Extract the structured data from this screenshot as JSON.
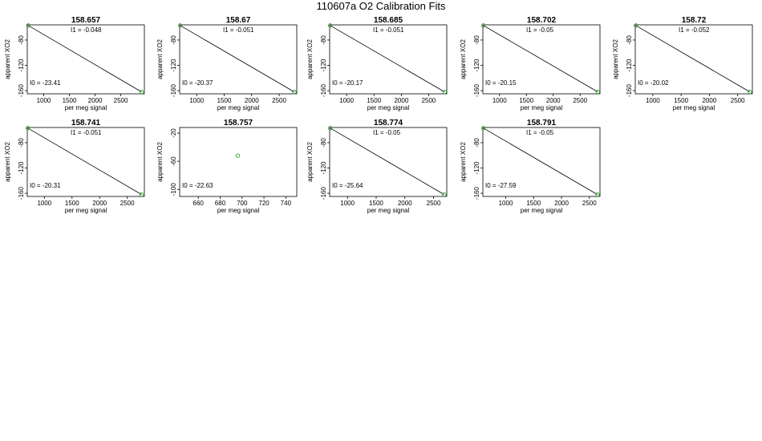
{
  "figure": {
    "title": "110607a   O2 Calibration Fits",
    "point_color": "#2ca02c",
    "line_color": "#000000"
  },
  "chart_data": [
    {
      "type": "scatter",
      "title": "158.657",
      "xlabel": "per meg signal",
      "ylabel": "apparent XO2",
      "xlim": [
        680,
        2960
      ],
      "ylim": [
        -165,
        -56
      ],
      "xticks": [
        1000,
        1500,
        2000,
        2500
      ],
      "yticks": [
        -160,
        -120,
        -80
      ],
      "points": [
        [
          700,
          -57
        ],
        [
          2905,
          -162
        ]
      ],
      "fit": [
        [
          700,
          -57
        ],
        [
          2905,
          -162
        ]
      ],
      "annotations": {
        "i1": "I1 =  -0.048",
        "i0": "I0 =  -23.41"
      }
    },
    {
      "type": "scatter",
      "title": "158.67",
      "xlabel": "per meg signal",
      "ylabel": "apparent XO2",
      "xlim": [
        690,
        2820
      ],
      "ylim": [
        -165,
        -56
      ],
      "xticks": [
        1000,
        1500,
        2000,
        2500
      ],
      "yticks": [
        -160,
        -120,
        -80
      ],
      "points": [
        [
          700,
          -57
        ],
        [
          2775,
          -162
        ]
      ],
      "fit": [
        [
          700,
          -57
        ],
        [
          2775,
          -162
        ]
      ],
      "annotations": {
        "i1": "I1 =  -0.051",
        "i0": "I0 =  -20.37"
      }
    },
    {
      "type": "scatter",
      "title": "158.685",
      "xlabel": "per meg signal",
      "ylabel": "apparent XO2",
      "xlim": [
        690,
        2830
      ],
      "ylim": [
        -165,
        -56
      ],
      "xticks": [
        1000,
        1500,
        2000,
        2500
      ],
      "yticks": [
        -160,
        -120,
        -80
      ],
      "points": [
        [
          700,
          -57
        ],
        [
          2790,
          -162
        ]
      ],
      "fit": [
        [
          700,
          -57
        ],
        [
          2790,
          -162
        ]
      ],
      "annotations": {
        "i1": "I1 =  -0.051",
        "i0": "I0 =  -20.17"
      }
    },
    {
      "type": "scatter",
      "title": "158.702",
      "xlabel": "per meg signal",
      "ylabel": "apparent XO2",
      "xlim": [
        690,
        2870
      ],
      "ylim": [
        -165,
        -56
      ],
      "xticks": [
        1000,
        1500,
        2000,
        2500
      ],
      "yticks": [
        -160,
        -120,
        -80
      ],
      "points": [
        [
          700,
          -57
        ],
        [
          2830,
          -162
        ]
      ],
      "fit": [
        [
          700,
          -57
        ],
        [
          2830,
          -162
        ]
      ],
      "annotations": {
        "i1": "I1 =  -0.05",
        "i0": "I0 =  -20.15"
      }
    },
    {
      "type": "scatter",
      "title": "158.72",
      "xlabel": "per meg signal",
      "ylabel": "apparent XO2",
      "xlim": [
        690,
        2760
      ],
      "ylim": [
        -165,
        -56
      ],
      "xticks": [
        1000,
        1500,
        2000,
        2500
      ],
      "yticks": [
        -160,
        -120,
        -80
      ],
      "points": [
        [
          700,
          -57
        ],
        [
          2715,
          -162
        ]
      ],
      "fit": [
        [
          700,
          -57
        ],
        [
          2715,
          -162
        ]
      ],
      "annotations": {
        "i1": "I1 =  -0.052",
        "i0": "I0 =  -20.02"
      }
    },
    {
      "type": "scatter",
      "title": "158.741",
      "xlabel": "per meg signal",
      "ylabel": "apparent XO2",
      "xlim": [
        690,
        2810
      ],
      "ylim": [
        -165,
        -56
      ],
      "xticks": [
        1000,
        1500,
        2000,
        2500
      ],
      "yticks": [
        -160,
        -120,
        -80
      ],
      "points": [
        [
          700,
          -57
        ],
        [
          2760,
          -162
        ]
      ],
      "fit": [
        [
          700,
          -57
        ],
        [
          2760,
          -162
        ]
      ],
      "annotations": {
        "i1": "I1 =  -0.051",
        "i0": "I0 =  -20.31"
      }
    },
    {
      "type": "scatter",
      "title": "158.757",
      "xlabel": "per meg signal",
      "ylabel": "apparent XO2",
      "xlim": [
        643,
        750
      ],
      "ylim": [
        -110,
        -12
      ],
      "xticks": [
        660,
        680,
        700,
        720,
        740
      ],
      "yticks": [
        -100,
        -60,
        -20
      ],
      "points": [
        [
          696,
          -52
        ]
      ],
      "fit": [],
      "annotations": {
        "i1": "",
        "i0": "I0 =  -22.63"
      }
    },
    {
      "type": "scatter",
      "title": "158.774",
      "xlabel": "per meg signal",
      "ylabel": "apparent XO2",
      "xlim": [
        690,
        2730
      ],
      "ylim": [
        -165,
        -56
      ],
      "xticks": [
        1000,
        1500,
        2000,
        2500
      ],
      "yticks": [
        -160,
        -120,
        -80
      ],
      "points": [
        [
          700,
          -57
        ],
        [
          2685,
          -162
        ]
      ],
      "fit": [
        [
          700,
          -57
        ],
        [
          2685,
          -162
        ]
      ],
      "annotations": {
        "i1": "I1 =  -0.05",
        "i0": "I0 =  -25.64"
      }
    },
    {
      "type": "scatter",
      "title": "158.791",
      "xlabel": "per meg signal",
      "ylabel": "apparent XO2",
      "xlim": [
        590,
        2690
      ],
      "ylim": [
        -165,
        -56
      ],
      "xticks": [
        1000,
        1500,
        2000,
        2500
      ],
      "yticks": [
        -160,
        -120,
        -80
      ],
      "points": [
        [
          600,
          -57
        ],
        [
          2645,
          -162
        ]
      ],
      "fit": [
        [
          600,
          -57
        ],
        [
          2645,
          -162
        ]
      ],
      "annotations": {
        "i1": "I1 =  -0.05",
        "i0": "I0 =  -27.59"
      }
    }
  ]
}
